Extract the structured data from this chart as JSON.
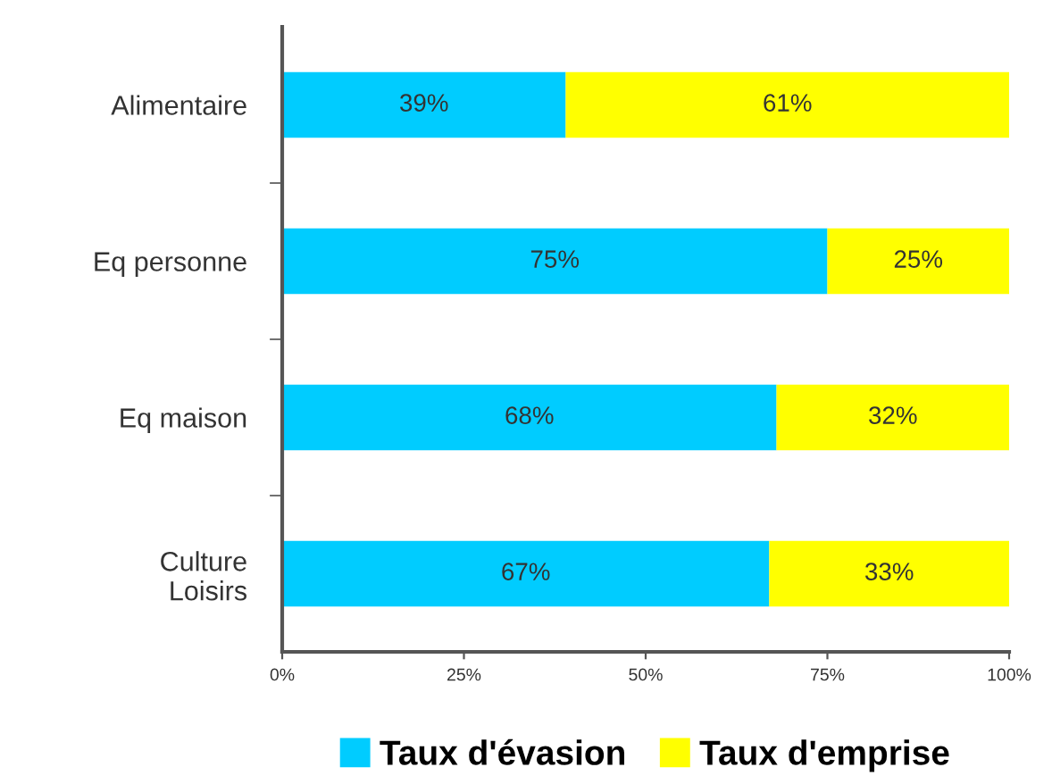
{
  "chart_data": {
    "type": "bar",
    "orientation": "horizontal",
    "stacked": true,
    "categories": [
      "Alimentaire",
      "Eq personne",
      "Eq maison",
      "Culture\nLoisirs"
    ],
    "series": [
      {
        "name": "Taux d'évasion",
        "color": "#00ccff",
        "values": [
          39,
          75,
          68,
          67
        ],
        "value_labels": [
          "39%",
          "75%",
          "68%",
          "67%"
        ]
      },
      {
        "name": "Taux d'emprise",
        "color": "#ffff00",
        "values": [
          61,
          25,
          32,
          33
        ],
        "value_labels": [
          "61%",
          "25%",
          "32%",
          "33%"
        ]
      }
    ],
    "xlim": [
      0,
      100
    ],
    "xticks": [
      {
        "value": 0,
        "label": "0%"
      },
      {
        "value": 25,
        "label": "25%"
      },
      {
        "value": 50,
        "label": "50%"
      },
      {
        "value": 75,
        "label": "75%"
      },
      {
        "value": 100,
        "label": "100%"
      }
    ],
    "grid": false,
    "legend": "bottom"
  }
}
